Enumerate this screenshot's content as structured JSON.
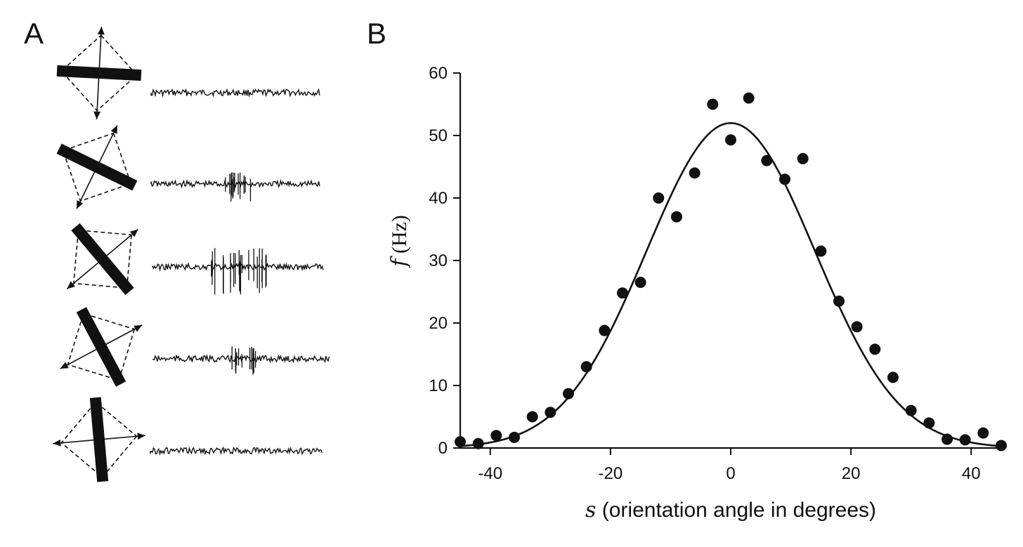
{
  "panels": {
    "a_label": "A",
    "b_label": "B"
  },
  "stimuli": [
    {
      "bar_angle_deg": 3,
      "spike_level": 0
    },
    {
      "bar_angle_deg": 26,
      "spike_level": 0.55
    },
    {
      "bar_angle_deg": 50,
      "spike_level": 1.0
    },
    {
      "bar_angle_deg": 62,
      "spike_level": 0.55
    },
    {
      "bar_angle_deg": 85,
      "spike_level": 0
    }
  ],
  "chart_data": {
    "type": "scatter",
    "xlabel_var": "s",
    "xlabel_rest": " (orientation angle in degrees)",
    "ylabel_var": "f",
    "ylabel_unit": " (Hz)",
    "xlim": [
      -45,
      45
    ],
    "ylim": [
      0,
      60
    ],
    "xticks": [
      -40,
      -20,
      0,
      20,
      40
    ],
    "yticks": [
      0,
      10,
      20,
      30,
      40,
      50,
      60
    ],
    "grid": false,
    "points": {
      "x": [
        -45,
        -42,
        -39,
        -36,
        -33,
        -30,
        -27,
        -24,
        -21,
        -18,
        -15,
        -12,
        -9,
        -6,
        -3,
        0,
        3,
        6,
        9,
        12,
        15,
        18,
        21,
        24,
        27,
        30,
        33,
        36,
        39,
        42,
        45
      ],
      "y": [
        1.0,
        0.7,
        2.0,
        1.7,
        5.0,
        5.7,
        8.7,
        13.0,
        18.8,
        24.8,
        26.5,
        40.0,
        37.0,
        44.0,
        55.0,
        49.3,
        56.0,
        46.0,
        43.0,
        46.3,
        31.5,
        23.5,
        19.4,
        15.8,
        11.3,
        6.0,
        4.0,
        1.4,
        1.3,
        2.4,
        0.4
      ]
    },
    "fit": {
      "type": "gaussian",
      "amplitude": 52.0,
      "center": 0,
      "sigma": 14.0
    }
  }
}
